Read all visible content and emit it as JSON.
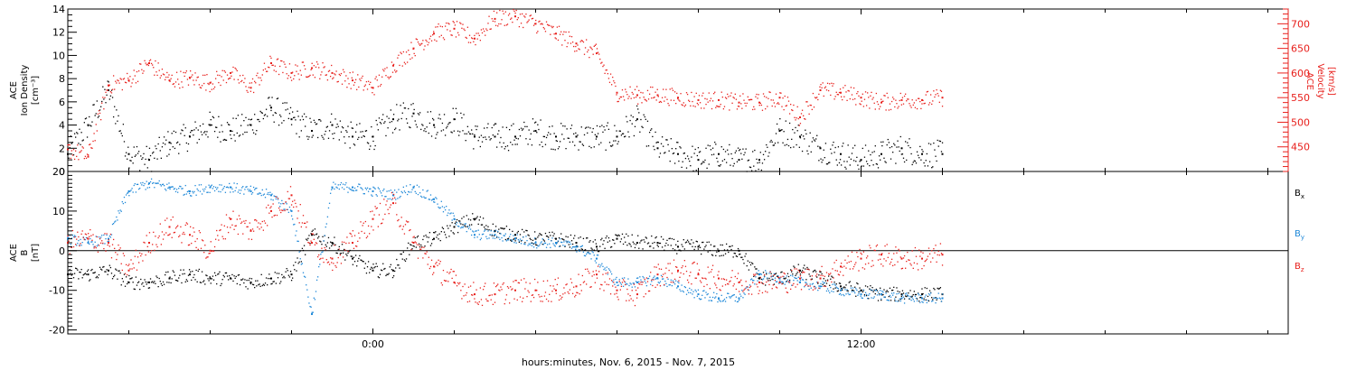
{
  "chart_data": [
    {
      "type": "scatter",
      "panel": "top",
      "title": "",
      "xlabel": "hours:minutes, Nov.  6, 2015 - Nov.  7, 2015",
      "x_unit": "hours relative to 2015-11-07 00:00",
      "xlim": [
        -7.5,
        22.5
      ],
      "x_ticks": [
        {
          "value": 0,
          "label": "0:00"
        },
        {
          "value": 12,
          "label": "12:00"
        }
      ],
      "left_axis": {
        "label_lines": [
          "ACE",
          "Ion Density",
          "[cm⁻³]"
        ],
        "ylim": [
          0,
          14
        ],
        "ticks": [
          0,
          2,
          4,
          6,
          8,
          10,
          12,
          14
        ],
        "color": "#000000"
      },
      "right_axis": {
        "label_lines": [
          "ACE",
          "Velocity",
          "[km/s]"
        ],
        "ylim": [
          400,
          730
        ],
        "ticks": [
          450,
          500,
          550,
          600,
          650,
          700
        ],
        "color": "#e8201c"
      },
      "series": [
        {
          "color": "#000000",
          "axis": "left",
          "x": [
            -7.5,
            -7.0,
            -6.5,
            -6.0,
            -5.5,
            -5.0,
            -4.5,
            -4.0,
            -3.5,
            -3.0,
            -2.5,
            -2.0,
            -1.5,
            -1.0,
            -0.5,
            0.0,
            0.5,
            1.0,
            1.5,
            2.0,
            2.5,
            3.0,
            3.5,
            4.0,
            4.5,
            5.0,
            5.5,
            6.0,
            6.5,
            7.0,
            7.5,
            8.0,
            8.5,
            9.0,
            9.5,
            10.0,
            10.5,
            11.0,
            11.5,
            12.0,
            12.5,
            13.0,
            13.5,
            14.0
          ],
          "values": [
            1.5,
            4.0,
            7.0,
            1.5,
            1.0,
            2.5,
            3.0,
            4.0,
            3.5,
            4.0,
            5.5,
            4.5,
            3.5,
            4.0,
            3.0,
            3.0,
            4.5,
            5.0,
            4.0,
            4.5,
            3.0,
            3.0,
            3.0,
            3.5,
            3.0,
            3.0,
            3.0,
            3.0,
            4.5,
            2.0,
            1.5,
            1.0,
            1.5,
            1.0,
            1.0,
            3.5,
            3.0,
            2.0,
            1.5,
            1.0,
            1.5,
            2.0,
            1.5,
            1.5
          ],
          "jitter": 1.2
        },
        {
          "color": "#e8201c",
          "axis": "right",
          "x": [
            -7.5,
            -7.0,
            -6.5,
            -6.0,
            -5.5,
            -5.0,
            -4.5,
            -4.0,
            -3.5,
            -3.0,
            -2.5,
            -2.0,
            -1.5,
            -1.0,
            -0.5,
            0.0,
            0.5,
            1.0,
            1.5,
            2.0,
            2.5,
            3.0,
            3.5,
            4.0,
            4.5,
            5.0,
            5.5,
            6.0,
            6.5,
            7.0,
            7.5,
            8.0,
            8.5,
            9.0,
            9.5,
            10.0,
            10.5,
            11.0,
            11.5,
            12.0,
            12.5,
            13.0,
            13.5,
            14.0
          ],
          "values": [
            445,
            430,
            575,
            585,
            620,
            585,
            590,
            580,
            600,
            570,
            620,
            600,
            610,
            600,
            585,
            570,
            615,
            650,
            680,
            690,
            670,
            710,
            715,
            700,
            680,
            660,
            640,
            560,
            555,
            555,
            550,
            545,
            545,
            540,
            540,
            550,
            510,
            565,
            560,
            550,
            540,
            545,
            545,
            550
          ],
          "jitter": 18
        }
      ]
    },
    {
      "type": "scatter",
      "panel": "bottom",
      "title": "",
      "xlabel": "hours:minutes, Nov.  6, 2015 - Nov.  7, 2015",
      "x_unit": "hours relative to 2015-11-07 00:00",
      "xlim": [
        -7.5,
        22.5
      ],
      "x_ticks": [
        {
          "value": 0,
          "label": "0:00"
        },
        {
          "value": 12,
          "label": "12:00"
        }
      ],
      "left_axis": {
        "label_lines": [
          "ACE",
          "B",
          "[nT]"
        ],
        "ylim": [
          -21,
          20
        ],
        "ticks": [
          -20,
          -10,
          0,
          10,
          20
        ],
        "color": "#000000"
      },
      "zero_line": true,
      "series": [
        {
          "name": "Bx",
          "name_main": "B",
          "name_sub": "x",
          "color": "#000000",
          "x": [
            -7.5,
            -7.0,
            -6.5,
            -6.0,
            -5.5,
            -5.0,
            -4.5,
            -4.0,
            -3.5,
            -3.0,
            -2.5,
            -2.0,
            -1.5,
            -1.0,
            -0.5,
            0.0,
            0.5,
            1.0,
            1.5,
            2.0,
            2.5,
            3.0,
            3.5,
            4.0,
            4.5,
            5.0,
            5.5,
            6.0,
            6.5,
            7.0,
            7.5,
            8.0,
            8.5,
            9.0,
            9.5,
            10.0,
            10.5,
            11.0,
            11.5,
            12.0,
            12.5,
            13.0,
            13.5,
            14.0
          ],
          "values": [
            -6,
            -6,
            -5,
            -8,
            -8,
            -7,
            -6,
            -7,
            -7,
            -8,
            -7,
            -6,
            4,
            2,
            -2,
            -5,
            -5,
            2,
            3,
            6,
            8,
            5,
            4,
            3,
            3,
            2,
            1,
            3,
            2,
            2,
            1,
            1,
            0,
            0,
            -7,
            -7,
            -5,
            -7,
            -9,
            -10,
            -11,
            -11,
            -11,
            -11
          ],
          "jitter": 1.8
        },
        {
          "name": "By",
          "name_main": "B",
          "name_sub": "y",
          "color": "#1e88d8",
          "x": [
            -7.5,
            -7.0,
            -6.5,
            -6.0,
            -5.5,
            -5.0,
            -4.5,
            -4.0,
            -3.5,
            -3.0,
            -2.5,
            -2.0,
            -1.5,
            -1.0,
            -0.5,
            0.0,
            0.5,
            1.0,
            1.5,
            2.0,
            2.5,
            3.0,
            3.5,
            4.0,
            4.5,
            5.0,
            5.5,
            6.0,
            6.5,
            7.0,
            7.5,
            8.0,
            8.5,
            9.0,
            9.5,
            10.0,
            10.5,
            11.0,
            11.5,
            12.0,
            12.5,
            13.0,
            13.5,
            14.0
          ],
          "values": [
            3,
            2,
            3,
            15,
            17,
            16,
            15,
            16,
            16,
            15,
            14,
            10,
            -16,
            16,
            16,
            15,
            14,
            16,
            13,
            8,
            4,
            4,
            3,
            2,
            2,
            1,
            -2,
            -8,
            -8,
            -7,
            -9,
            -11,
            -12,
            -12,
            -6,
            -7,
            -8,
            -9,
            -10,
            -11,
            -11,
            -12,
            -12,
            -12
          ],
          "jitter": 1.3
        },
        {
          "name": "Bz",
          "name_main": "B",
          "name_sub": "z",
          "color": "#e8201c",
          "x": [
            -7.5,
            -7.0,
            -6.5,
            -6.0,
            -5.5,
            -5.0,
            -4.5,
            -4.0,
            -3.5,
            -3.0,
            -2.5,
            -2.0,
            -1.5,
            -1.0,
            -0.5,
            0.0,
            0.5,
            1.0,
            1.5,
            2.0,
            2.5,
            3.0,
            3.5,
            4.0,
            4.5,
            5.0,
            5.5,
            6.0,
            6.5,
            7.0,
            7.5,
            8.0,
            8.5,
            9.0,
            9.5,
            10.0,
            10.5,
            11.0,
            11.5,
            12.0,
            12.5,
            13.0,
            13.5,
            14.0
          ],
          "values": [
            2,
            3,
            2,
            -5,
            2,
            6,
            4,
            0,
            8,
            5,
            10,
            14,
            2,
            -2,
            2,
            8,
            12,
            2,
            -4,
            -8,
            -11,
            -11,
            -10,
            -10,
            -10,
            -9,
            -6,
            -10,
            -11,
            -6,
            -5,
            -6,
            -7,
            -8,
            -8,
            -8,
            -7,
            -7,
            -4,
            -2,
            -1,
            -2,
            -2,
            -1
          ],
          "jitter": 3.0
        }
      ]
    }
  ]
}
